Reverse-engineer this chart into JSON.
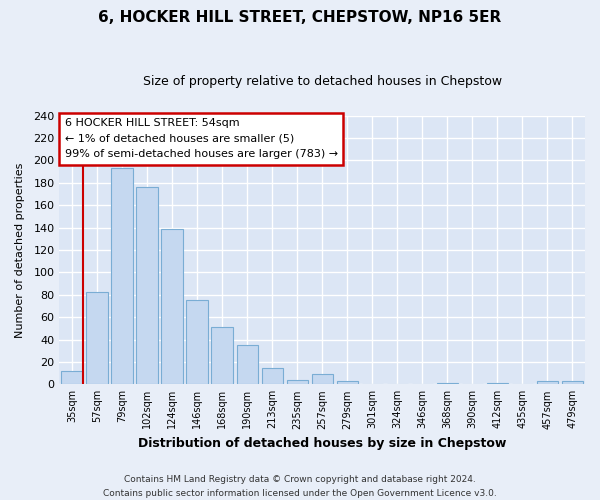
{
  "title": "6, HOCKER HILL STREET, CHEPSTOW, NP16 5ER",
  "subtitle": "Size of property relative to detached houses in Chepstow",
  "xlabel": "Distribution of detached houses by size in Chepstow",
  "ylabel": "Number of detached properties",
  "bar_labels": [
    "35sqm",
    "57sqm",
    "79sqm",
    "102sqm",
    "124sqm",
    "146sqm",
    "168sqm",
    "190sqm",
    "213sqm",
    "235sqm",
    "257sqm",
    "279sqm",
    "301sqm",
    "324sqm",
    "346sqm",
    "368sqm",
    "390sqm",
    "412sqm",
    "435sqm",
    "457sqm",
    "479sqm"
  ],
  "bar_values": [
    12,
    82,
    193,
    176,
    139,
    75,
    51,
    35,
    15,
    4,
    9,
    3,
    0,
    0,
    0,
    1,
    0,
    1,
    0,
    3,
    3
  ],
  "bar_color": "#c5d8f0",
  "bar_edge_color": "#7aadd4",
  "highlight_edge_color": "#cc0000",
  "ylim": [
    0,
    240
  ],
  "yticks": [
    0,
    20,
    40,
    60,
    80,
    100,
    120,
    140,
    160,
    180,
    200,
    220,
    240
  ],
  "annotation_title": "6 HOCKER HILL STREET: 54sqm",
  "annotation_line1": "← 1% of detached houses are smaller (5)",
  "annotation_line2": "99% of semi-detached houses are larger (783) →",
  "annotation_box_color": "#ffffff",
  "annotation_box_edge": "#cc0000",
  "footer_line1": "Contains HM Land Registry data © Crown copyright and database right 2024.",
  "footer_line2": "Contains public sector information licensed under the Open Government Licence v3.0.",
  "background_color": "#e8eef8",
  "plot_bg_color": "#dce6f5",
  "grid_color": "#ffffff"
}
